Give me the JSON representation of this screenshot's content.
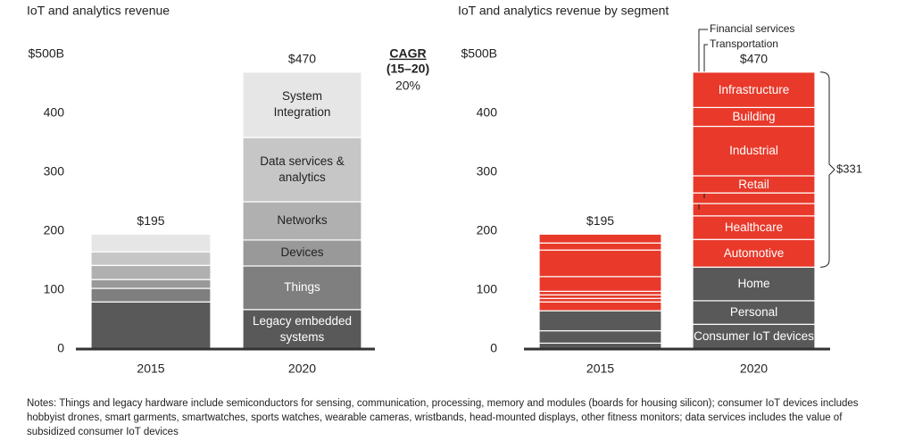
{
  "chart_data": [
    {
      "type": "stacked_bar",
      "title": "IoT and analytics revenue",
      "categories": [
        "2015",
        "2020"
      ],
      "ylim": [
        0,
        500
      ],
      "yticks": [
        0,
        100,
        200,
        300,
        400,
        {
          "value": 500,
          "label": "$500B"
        }
      ],
      "series": [
        {
          "name": "Legacy embedded\nsystems",
          "color": "#595959",
          "values": [
            80,
            67
          ]
        },
        {
          "name": "Things",
          "color": "#7f7f7f",
          "values": [
            23,
            74
          ]
        },
        {
          "name": "Devices",
          "color": "#999999",
          "values": [
            15,
            44
          ]
        },
        {
          "name": "Networks",
          "color": "#b0b0b0",
          "values": [
            24,
            65
          ]
        },
        {
          "name": "Data services &\nanalytics",
          "color": "#c6c6c6",
          "values": [
            23,
            109
          ]
        },
        {
          "name": "System\nIntegration",
          "color": "#e6e6e6",
          "values": [
            30,
            111
          ]
        }
      ],
      "totals": [
        195,
        470
      ],
      "total_labels": [
        "$195",
        "$470"
      ],
      "cagr": {
        "title": "CAGR",
        "period": "(15–20)",
        "value": "20%"
      }
    },
    {
      "type": "stacked_bar",
      "title": "IoT and analytics revenue by segment",
      "categories": [
        "2015",
        "2020"
      ],
      "ylim": [
        0,
        500
      ],
      "yticks": [
        0,
        100,
        200,
        300,
        400,
        {
          "value": 500,
          "label": "$500B"
        }
      ],
      "series": [
        {
          "name": "Consumer IoT devices",
          "color": "#595959",
          "values": [
            10,
            42
          ]
        },
        {
          "name": "Personal",
          "color": "#595959",
          "values": [
            21,
            40
          ]
        },
        {
          "name": "Home",
          "color": "#595959",
          "values": [
            34,
            57
          ]
        },
        {
          "name": "Automotive",
          "color": "#e8392a",
          "values": [
            15,
            47
          ]
        },
        {
          "name": "Healthcare",
          "color": "#e8392a",
          "values": [
            6,
            40
          ]
        },
        {
          "name": "Financial services",
          "color": "#e8392a",
          "values": [
            6,
            21
          ]
        },
        {
          "name": "Transportation",
          "color": "#e8392a",
          "values": [
            6,
            18
          ]
        },
        {
          "name": "Retail",
          "color": "#e8392a",
          "values": [
            25,
            29
          ]
        },
        {
          "name": "Industrial",
          "color": "#e8392a",
          "values": [
            45,
            84
          ]
        },
        {
          "name": "Building",
          "color": "#e8392a",
          "values": [
            12,
            32
          ]
        },
        {
          "name": "Infrastructure",
          "color": "#e8392a",
          "values": [
            15,
            60
          ]
        }
      ],
      "totals": [
        195,
        470
      ],
      "total_labels": [
        "$195",
        "$470"
      ],
      "bracket": {
        "value": 331,
        "label": "$331"
      }
    }
  ],
  "notes": "Notes: Things and legacy hardware include semiconductors for sensing, communication, processing, memory and modules (boards for housing silicon); consumer IoT devices includes hobbyist drones, smart garments, smartwatches, sports watches, wearable cameras, wristbands, head-mounted displays, other fitness monitors; data services includes the value of subsidized consumer IoT devices"
}
